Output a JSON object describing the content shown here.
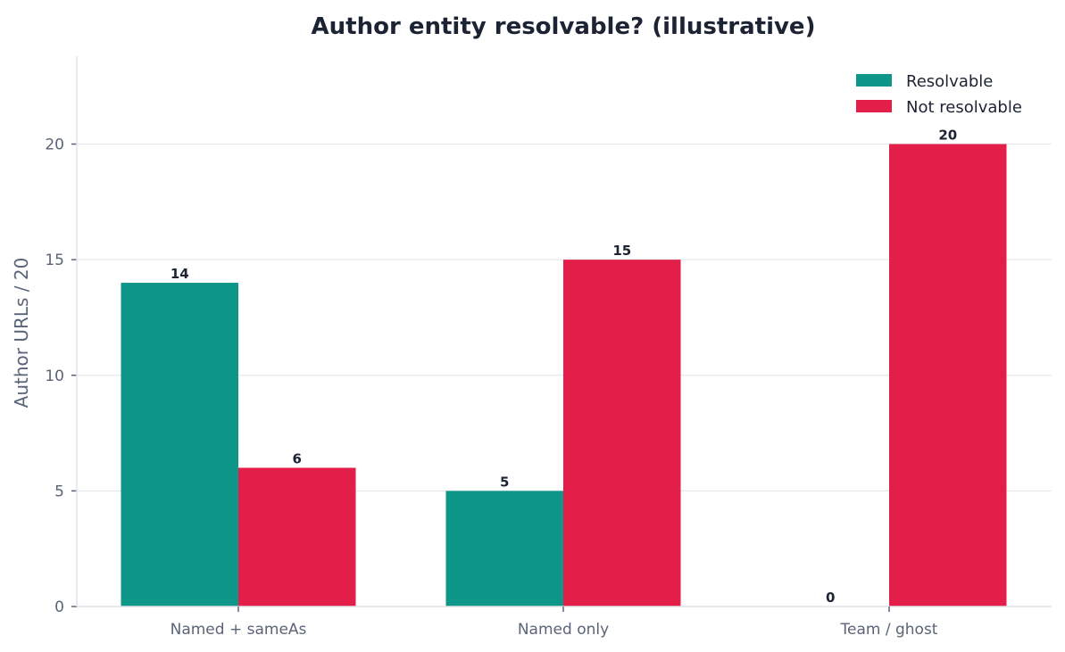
{
  "chart_data": {
    "type": "bar",
    "title": "Author entity resolvable? (illustrative)",
    "xlabel": "",
    "ylabel": "Author URLs / 20",
    "categories": [
      "Named + sameAs",
      "Named only",
      "Team / ghost"
    ],
    "series": [
      {
        "name": "Resolvable",
        "color": "#0e9688",
        "values": [
          14,
          5,
          0
        ]
      },
      {
        "name": "Not resolvable",
        "color": "#e31e48",
        "values": [
          6,
          15,
          20
        ]
      }
    ],
    "ylim": [
      0,
      23.8
    ],
    "yticks": [
      0,
      5,
      10,
      15,
      20
    ],
    "grid": true,
    "legend_position": "top-right"
  }
}
